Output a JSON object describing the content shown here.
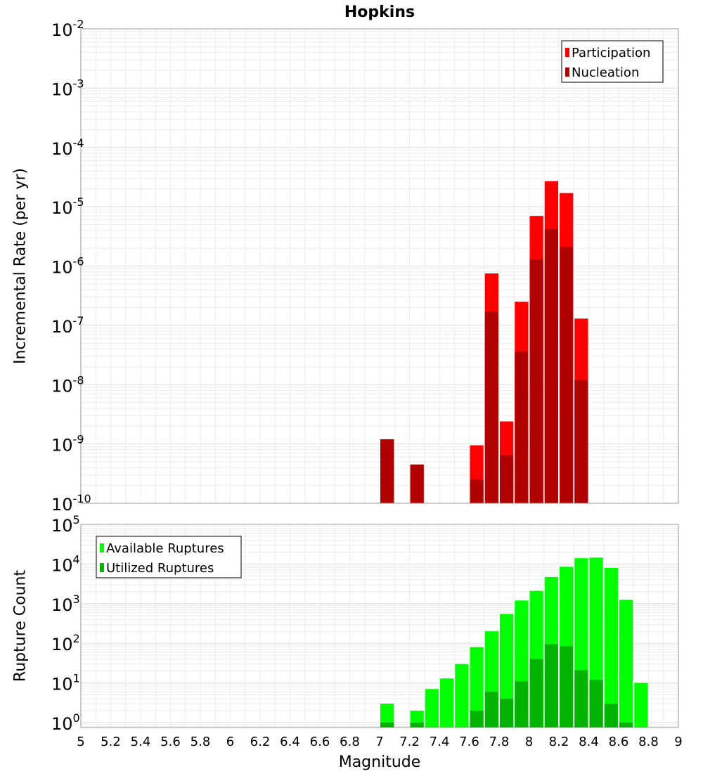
{
  "chart_data": [
    {
      "type": "bar",
      "title": "Hopkins",
      "xlabel": "",
      "ylabel": "Incremental Rate (per yr)",
      "yscale": "log",
      "ylim": [
        1e-10,
        0.01
      ],
      "xlim": [
        5,
        9
      ],
      "bar_width": 0.1,
      "grid": true,
      "legend_position": "top-right",
      "overlay": true,
      "ytick_exponents": [
        -2,
        -3,
        -4,
        -5,
        -6,
        -7,
        -8,
        -9,
        -10
      ],
      "series": [
        {
          "name": "Participation",
          "color": "#ff0000",
          "x": [
            7.05,
            7.25,
            7.65,
            7.75,
            7.85,
            7.95,
            8.05,
            8.15,
            8.25,
            8.35
          ],
          "values": [
            1.2e-09,
            4.5e-10,
            9.5e-10,
            7.5e-07,
            2.4e-09,
            2.5e-07,
            7e-06,
            2.7e-05,
            1.7e-05,
            1.3e-07
          ]
        },
        {
          "name": "Nucleation",
          "color": "#b00000",
          "x": [
            7.05,
            7.25,
            7.65,
            7.75,
            7.85,
            7.95,
            8.05,
            8.15,
            8.25,
            8.35
          ],
          "values": [
            1.2e-09,
            4.5e-10,
            2.5e-10,
            1.7e-07,
            6.5e-10,
            3.6e-08,
            1.3e-06,
            4.2e-06,
            2.1e-06,
            1.2e-08
          ]
        }
      ]
    },
    {
      "type": "bar",
      "title": "",
      "xlabel": "Magnitude",
      "ylabel": "Rupture Count",
      "yscale": "log",
      "ylim": [
        0.75,
        100000.0
      ],
      "xlim": [
        5,
        9
      ],
      "bar_width": 0.1,
      "grid": true,
      "legend_position": "top-left",
      "overlay": true,
      "ytick_exponents": [
        5,
        4,
        3,
        2,
        1,
        0
      ],
      "xticks": [
        "5",
        "5.2",
        "5.4",
        "5.6",
        "5.8",
        "6",
        "6.2",
        "6.4",
        "6.6",
        "6.8",
        "7",
        "7.2",
        "7.4",
        "7.6",
        "7.8",
        "8",
        "8.2",
        "8.4",
        "8.6",
        "8.8",
        "9"
      ],
      "series": [
        {
          "name": "Available Ruptures",
          "color": "#00ff00",
          "x": [
            7.05,
            7.25,
            7.35,
            7.45,
            7.55,
            7.65,
            7.75,
            7.85,
            7.95,
            8.05,
            8.15,
            8.25,
            8.35,
            8.45,
            8.55,
            8.65,
            8.75
          ],
          "values": [
            3,
            2,
            7,
            13,
            30,
            80,
            200,
            550,
            1200,
            2100,
            4700,
            8500,
            14000,
            14500,
            8000,
            1250,
            10
          ]
        },
        {
          "name": "Utilized Ruptures",
          "color": "#00b400",
          "x": [
            7.05,
            7.25,
            7.65,
            7.75,
            7.85,
            7.95,
            8.05,
            8.15,
            8.25,
            8.35,
            8.45,
            8.55,
            8.65
          ],
          "values": [
            1,
            1,
            2,
            6,
            4,
            11,
            40,
            95,
            85,
            21,
            12,
            3,
            1
          ]
        }
      ]
    }
  ]
}
